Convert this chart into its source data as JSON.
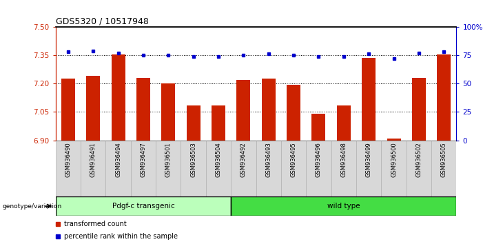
{
  "title": "GDS5320 / 10517948",
  "categories": [
    "GSM936490",
    "GSM936491",
    "GSM936494",
    "GSM936497",
    "GSM936501",
    "GSM936503",
    "GSM936504",
    "GSM936492",
    "GSM936493",
    "GSM936495",
    "GSM936496",
    "GSM936498",
    "GSM936499",
    "GSM936500",
    "GSM936502",
    "GSM936505"
  ],
  "bar_values": [
    7.225,
    7.24,
    7.355,
    7.23,
    7.2,
    7.085,
    7.085,
    7.22,
    7.225,
    7.195,
    7.04,
    7.085,
    7.335,
    6.91,
    7.23,
    7.355
  ],
  "dot_values": [
    78,
    79,
    77,
    75,
    75,
    74,
    74,
    75,
    76,
    75,
    74,
    74,
    76,
    72,
    77,
    78
  ],
  "ylim_left": [
    6.9,
    7.5
  ],
  "ylim_right": [
    0,
    100
  ],
  "yticks_left": [
    6.9,
    7.05,
    7.2,
    7.35,
    7.5
  ],
  "yticks_right": [
    0,
    25,
    50,
    75,
    100
  ],
  "ytick_labels_right": [
    "0",
    "25",
    "50",
    "75",
    "100%"
  ],
  "bar_color": "#cc2200",
  "dot_color": "#0000cc",
  "group1_label": "Pdgf-c transgenic",
  "group2_label": "wild type",
  "group1_count": 7,
  "group2_count": 9,
  "group1_color": "#bbffbb",
  "group2_color": "#44dd44",
  "genotype_label": "genotype/variation",
  "legend1": "transformed count",
  "legend2": "percentile rank within the sample",
  "bar_bottom": 6.9,
  "title_fontsize": 9,
  "tick_fontsize": 7.5,
  "label_fontsize": 7.5
}
